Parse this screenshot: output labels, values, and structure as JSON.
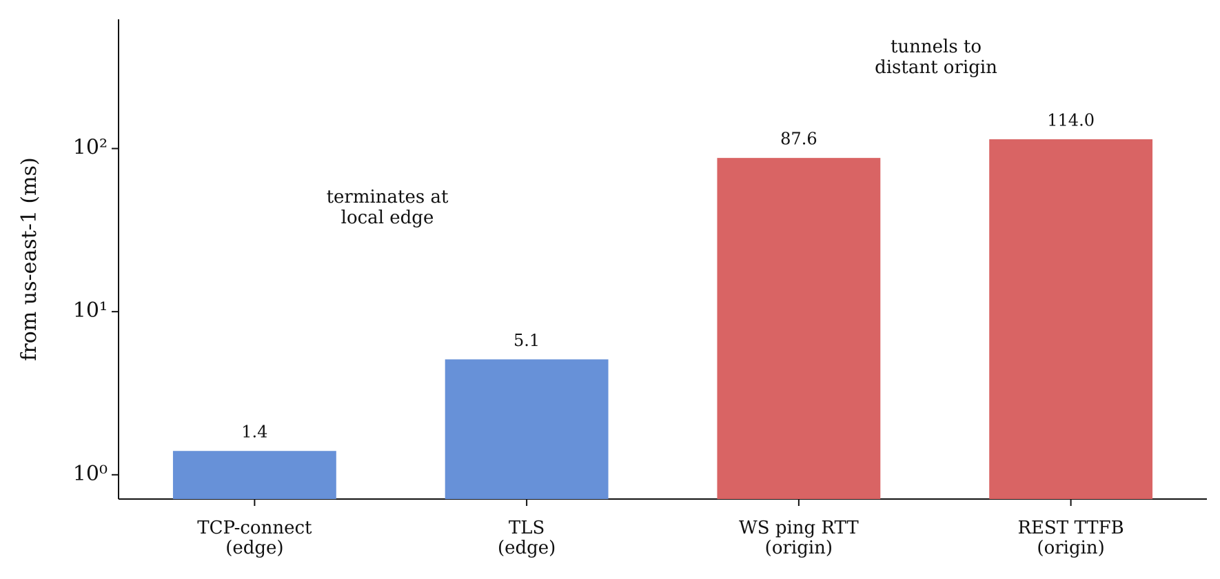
{
  "chart_data": {
    "type": "bar",
    "y_label": "from us-east-1 (ms)",
    "categories": [
      [
        "TCP-connect",
        "(edge)"
      ],
      [
        "TLS",
        "(edge)"
      ],
      [
        "WS ping RTT",
        "(origin)"
      ],
      [
        "REST TTFB",
        "(origin)"
      ]
    ],
    "values": [
      1.4,
      5.1,
      87.6,
      114.0
    ],
    "value_labels": [
      "1.4",
      "5.1",
      "87.6",
      "114.0"
    ],
    "colors": [
      "#6791d8",
      "#6791d8",
      "#d96464",
      "#d96464"
    ],
    "ylim": [
      0.71,
      620
    ],
    "yscale": "log",
    "yticks": [
      {
        "value": 1,
        "label": "10⁰"
      },
      {
        "value": 10,
        "label": "10¹"
      },
      {
        "value": 100,
        "label": "10²"
      }
    ],
    "annotations": [
      {
        "lines": [
          "terminates at",
          "local edge"
        ],
        "color": "#6791d8"
      },
      {
        "lines": [
          "tunnels to",
          "distant origin"
        ],
        "color": "#d96464"
      }
    ]
  }
}
